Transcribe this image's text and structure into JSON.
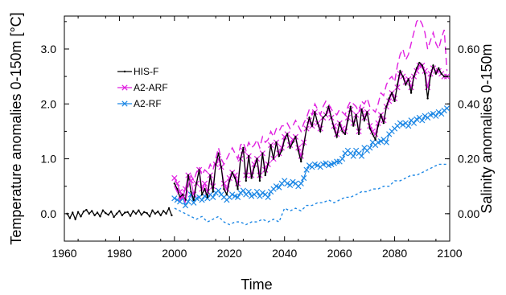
{
  "chart_data": {
    "type": "line",
    "xlabel": "Time",
    "ylabel": "Temperature anomalies 0-150m [°C]",
    "y2label": "Salinity anomalies 0-150m",
    "xlim": [
      1960,
      2100
    ],
    "ylim": [
      -0.5,
      3.6
    ],
    "y2lim": [
      -0.1,
      0.72
    ],
    "x_ticks": [
      1960,
      1980,
      2000,
      2020,
      2040,
      2060,
      2080,
      2100
    ],
    "x_tick_labels": [
      "1960",
      "1980",
      "2000",
      "2020",
      "2040",
      "2060",
      "2080",
      "2100"
    ],
    "y_ticks": [
      0,
      1,
      2,
      3
    ],
    "y_tick_labels": [
      "0.0",
      "1.0",
      "2.0",
      "3.0"
    ],
    "y2_ticks": [
      0,
      0.2,
      0.4,
      0.6
    ],
    "y2_tick_labels": [
      "0.00",
      "0.20",
      "0.40",
      "0.60"
    ],
    "grid": false,
    "legend_position": "top-left",
    "colors": {
      "his": "#000000",
      "arf": "#e020e0",
      "rf": "#1e88e5"
    },
    "series": [
      {
        "name": "HIS-F",
        "axis": "left",
        "color": "#000000",
        "style": "solid-dot",
        "marker": "dot",
        "x": [
          1961,
          1962,
          1963,
          1964,
          1965,
          1966,
          1967,
          1968,
          1969,
          1970,
          1971,
          1972,
          1973,
          1974,
          1975,
          1976,
          1977,
          1978,
          1979,
          1980,
          1981,
          1982,
          1983,
          1984,
          1985,
          1986,
          1987,
          1988,
          1989,
          1990,
          1991,
          1992,
          1993,
          1994,
          1995,
          1996,
          1997,
          1998,
          1999
        ],
        "y": [
          0.0,
          -0.08,
          0.02,
          -0.1,
          0.03,
          -0.05,
          0.04,
          0.07,
          0.0,
          0.05,
          -0.03,
          0.02,
          -0.05,
          0.06,
          0.01,
          -0.02,
          0.04,
          -0.06,
          0.0,
          0.05,
          -0.03,
          0.02,
          0.03,
          -0.04,
          0.05,
          0.0,
          0.06,
          -0.02,
          0.03,
          0.01,
          -0.05,
          0.06,
          0.0,
          0.04,
          -0.03,
          0.05,
          0.0,
          0.1,
          -0.03
        ]
      },
      {
        "name": "HIS-F",
        "axis": "left",
        "color": "#000000",
        "style": "solid-dot",
        "marker": "dot",
        "x": [
          2000,
          2001,
          2002,
          2003,
          2004,
          2005,
          2006,
          2007,
          2008,
          2009,
          2010,
          2011,
          2012,
          2013,
          2014,
          2015,
          2016,
          2017,
          2018,
          2019,
          2020,
          2021,
          2022,
          2023,
          2024,
          2025,
          2026,
          2027,
          2028,
          2029,
          2030,
          2031,
          2032,
          2033,
          2034,
          2035,
          2036,
          2037,
          2038,
          2039,
          2040,
          2041,
          2042,
          2043,
          2044,
          2045,
          2046,
          2047,
          2048,
          2049,
          2050,
          2051,
          2052,
          2053,
          2054,
          2055,
          2056,
          2057,
          2058,
          2059,
          2060,
          2061,
          2062,
          2063,
          2064,
          2065,
          2066,
          2067,
          2068,
          2069,
          2070,
          2071,
          2072,
          2073,
          2074,
          2075,
          2076,
          2077,
          2078,
          2079,
          2080,
          2081,
          2082,
          2083,
          2084,
          2085,
          2086,
          2087,
          2088,
          2089,
          2090,
          2091,
          2092,
          2093,
          2094,
          2095,
          2096,
          2097,
          2098,
          2099
        ],
        "y": [
          0.55,
          0.45,
          0.3,
          0.35,
          0.25,
          0.7,
          0.4,
          0.25,
          0.55,
          0.8,
          0.35,
          0.45,
          0.3,
          0.7,
          0.4,
          0.9,
          1.1,
          0.85,
          0.45,
          0.35,
          0.6,
          0.75,
          0.65,
          0.45,
          1.0,
          1.2,
          0.6,
          1.05,
          0.65,
          0.85,
          1.0,
          0.6,
          1.1,
          0.7,
          0.9,
          1.25,
          1.0,
          1.3,
          1.05,
          1.15,
          1.35,
          1.45,
          1.2,
          1.3,
          1.4,
          1.15,
          0.95,
          1.25,
          1.55,
          1.75,
          1.6,
          1.85,
          1.65,
          1.5,
          1.75,
          1.8,
          1.95,
          1.75,
          1.55,
          1.4,
          1.65,
          1.5,
          1.45,
          1.7,
          1.95,
          1.6,
          1.8,
          1.45,
          1.9,
          1.7,
          1.85,
          1.55,
          1.45,
          1.35,
          1.6,
          1.8,
          1.65,
          1.95,
          2.1,
          2.2,
          2.05,
          2.35,
          2.6,
          2.5,
          2.35,
          2.45,
          2.2,
          2.5,
          2.65,
          2.75,
          2.7,
          2.55,
          2.1,
          2.5,
          2.7,
          2.55,
          2.65,
          2.55,
          2.5,
          2.5
        ]
      },
      {
        "name": "A2-ARF",
        "axis": "left",
        "color": "#e020e0",
        "style": "solid",
        "marker": "x",
        "x": [
          2000,
          2001,
          2002,
          2003,
          2004,
          2005,
          2006,
          2007,
          2008,
          2009,
          2010,
          2011,
          2012,
          2013,
          2014,
          2015,
          2016,
          2017,
          2018,
          2019,
          2020,
          2021,
          2022,
          2023,
          2024,
          2025,
          2026,
          2027,
          2028,
          2029,
          2030,
          2031,
          2032,
          2033,
          2034,
          2035,
          2036,
          2037,
          2038,
          2039,
          2040,
          2041,
          2042,
          2043,
          2044,
          2045,
          2046,
          2047,
          2048,
          2049,
          2050,
          2051,
          2052,
          2053,
          2054,
          2055,
          2056,
          2057,
          2058,
          2059,
          2060,
          2061,
          2062,
          2063,
          2064,
          2065,
          2066,
          2067,
          2068,
          2069,
          2070,
          2071,
          2072,
          2073,
          2074,
          2075,
          2076,
          2077,
          2078,
          2079,
          2080,
          2081,
          2082,
          2083,
          2084,
          2085,
          2086,
          2087,
          2088,
          2089,
          2090,
          2091,
          2092,
          2093,
          2094,
          2095,
          2096,
          2097,
          2098,
          2099
        ],
        "y": [
          0.65,
          0.55,
          0.4,
          0.3,
          0.45,
          0.7,
          0.6,
          0.35,
          0.55,
          0.8,
          0.45,
          0.55,
          0.4,
          0.7,
          0.5,
          0.9,
          1.0,
          0.85,
          0.55,
          0.45,
          0.65,
          0.75,
          0.7,
          0.55,
          1.0,
          1.15,
          0.7,
          1.05,
          0.7,
          0.9,
          1.0,
          0.7,
          1.1,
          0.8,
          0.9,
          1.25,
          1.0,
          1.3,
          1.1,
          1.2,
          1.4,
          1.45,
          1.25,
          1.35,
          1.4,
          1.2,
          1.05,
          1.3,
          1.55,
          1.7,
          1.6,
          1.85,
          1.65,
          1.55,
          1.75,
          1.8,
          1.9,
          1.75,
          1.6,
          1.45,
          1.65,
          1.55,
          1.5,
          1.75,
          1.9,
          1.65,
          1.8,
          1.5,
          1.9,
          1.75,
          1.85,
          1.6,
          1.5,
          1.45,
          1.65,
          1.8,
          1.7,
          1.95,
          2.05,
          2.2,
          2.1,
          2.3,
          2.55,
          2.5,
          2.4,
          2.45,
          2.3,
          2.5,
          2.6,
          2.7,
          2.7,
          2.6,
          2.3,
          2.55,
          2.65,
          2.6,
          2.6,
          2.55,
          2.5,
          2.5
        ]
      },
      {
        "name": "A2-RF",
        "axis": "left",
        "color": "#1e88e5",
        "style": "solid",
        "marker": "x",
        "x": [
          2000,
          2001,
          2002,
          2003,
          2004,
          2005,
          2006,
          2007,
          2008,
          2009,
          2010,
          2011,
          2012,
          2013,
          2014,
          2015,
          2016,
          2017,
          2018,
          2019,
          2020,
          2021,
          2022,
          2023,
          2024,
          2025,
          2026,
          2027,
          2028,
          2029,
          2030,
          2031,
          2032,
          2033,
          2034,
          2035,
          2036,
          2037,
          2038,
          2039,
          2040,
          2041,
          2042,
          2043,
          2044,
          2045,
          2046,
          2047,
          2048,
          2049,
          2050,
          2051,
          2052,
          2053,
          2054,
          2055,
          2056,
          2057,
          2058,
          2059,
          2060,
          2061,
          2062,
          2063,
          2064,
          2065,
          2066,
          2067,
          2068,
          2069,
          2070,
          2071,
          2072,
          2073,
          2074,
          2075,
          2076,
          2077,
          2078,
          2079,
          2080,
          2081,
          2082,
          2083,
          2084,
          2085,
          2086,
          2087,
          2088,
          2089,
          2090,
          2091,
          2092,
          2093,
          2094,
          2095,
          2096,
          2097,
          2098,
          2099
        ],
        "y": [
          0.28,
          0.25,
          0.22,
          0.3,
          0.15,
          0.22,
          0.35,
          0.2,
          0.28,
          0.3,
          0.25,
          0.32,
          0.28,
          0.35,
          0.3,
          0.38,
          0.42,
          0.35,
          0.3,
          0.25,
          0.3,
          0.35,
          0.32,
          0.3,
          0.38,
          0.42,
          0.35,
          0.4,
          0.32,
          0.35,
          0.4,
          0.32,
          0.38,
          0.35,
          0.3,
          0.4,
          0.45,
          0.5,
          0.48,
          0.55,
          0.6,
          0.55,
          0.52,
          0.58,
          0.55,
          0.5,
          0.55,
          0.65,
          0.8,
          0.88,
          0.85,
          0.9,
          0.88,
          0.85,
          0.9,
          0.92,
          0.88,
          0.9,
          0.92,
          0.95,
          0.95,
          1.0,
          1.1,
          1.15,
          1.1,
          1.05,
          1.15,
          1.1,
          1.05,
          1.2,
          1.15,
          1.2,
          1.3,
          1.25,
          1.3,
          1.32,
          1.35,
          1.3,
          1.45,
          1.5,
          1.55,
          1.6,
          1.65,
          1.62,
          1.65,
          1.6,
          1.7,
          1.65,
          1.72,
          1.75,
          1.7,
          1.78,
          1.75,
          1.8,
          1.82,
          1.78,
          1.85,
          1.82,
          1.88,
          1.92
        ]
      },
      {
        "name": "A2-ARF",
        "axis": "right",
        "color": "#e020e0",
        "style": "dashed",
        "marker": "none",
        "x": [
          2000,
          2001,
          2002,
          2003,
          2004,
          2005,
          2006,
          2007,
          2008,
          2009,
          2010,
          2011,
          2012,
          2013,
          2014,
          2015,
          2016,
          2017,
          2018,
          2019,
          2020,
          2021,
          2022,
          2023,
          2024,
          2025,
          2026,
          2027,
          2028,
          2029,
          2030,
          2031,
          2032,
          2033,
          2034,
          2035,
          2036,
          2037,
          2038,
          2039,
          2040,
          2041,
          2042,
          2043,
          2044,
          2045,
          2046,
          2047,
          2048,
          2049,
          2050,
          2051,
          2052,
          2053,
          2054,
          2055,
          2056,
          2057,
          2058,
          2059,
          2060,
          2061,
          2062,
          2063,
          2064,
          2065,
          2066,
          2067,
          2068,
          2069,
          2070,
          2071,
          2072,
          2073,
          2074,
          2075,
          2076,
          2077,
          2078,
          2079,
          2080,
          2081,
          2082,
          2083,
          2084,
          2085,
          2086,
          2087,
          2088,
          2089,
          2090,
          2091,
          2092,
          2093,
          2094,
          2095,
          2096,
          2097,
          2098,
          2099
        ],
        "y": [
          0.1,
          0.08,
          0.05,
          0.07,
          0.04,
          0.1,
          0.14,
          0.12,
          0.15,
          0.17,
          0.14,
          0.16,
          0.15,
          0.18,
          0.16,
          0.2,
          0.24,
          0.2,
          0.18,
          0.2,
          0.22,
          0.24,
          0.22,
          0.2,
          0.25,
          0.26,
          0.23,
          0.26,
          0.24,
          0.25,
          0.27,
          0.24,
          0.28,
          0.26,
          0.27,
          0.3,
          0.28,
          0.31,
          0.3,
          0.32,
          0.32,
          0.33,
          0.31,
          0.32,
          0.34,
          0.32,
          0.3,
          0.33,
          0.35,
          0.38,
          0.36,
          0.4,
          0.38,
          0.36,
          0.39,
          0.41,
          0.4,
          0.38,
          0.37,
          0.36,
          0.38,
          0.37,
          0.36,
          0.39,
          0.41,
          0.4,
          0.39,
          0.37,
          0.41,
          0.4,
          0.42,
          0.39,
          0.38,
          0.37,
          0.4,
          0.44,
          0.43,
          0.47,
          0.49,
          0.5,
          0.48,
          0.54,
          0.58,
          0.6,
          0.56,
          0.58,
          0.62,
          0.66,
          0.7,
          0.71,
          0.69,
          0.66,
          0.6,
          0.63,
          0.66,
          0.62,
          0.6,
          0.64,
          0.67,
          0.52
        ]
      },
      {
        "name": "A2-RF",
        "axis": "right",
        "color": "#1e88e5",
        "style": "dotted",
        "marker": "none",
        "x": [
          2000,
          2002,
          2004,
          2006,
          2008,
          2010,
          2012,
          2014,
          2016,
          2018,
          2020,
          2022,
          2024,
          2026,
          2028,
          2030,
          2032,
          2034,
          2036,
          2038,
          2040,
          2042,
          2044,
          2046,
          2048,
          2050,
          2052,
          2054,
          2056,
          2058,
          2060,
          2062,
          2064,
          2066,
          2068,
          2070,
          2072,
          2074,
          2076,
          2078,
          2080,
          2082,
          2084,
          2086,
          2088,
          2090,
          2092,
          2094,
          2096,
          2098,
          2099
        ],
        "y": [
          0.02,
          0.01,
          0.0,
          -0.01,
          -0.02,
          -0.01,
          -0.03,
          -0.02,
          -0.01,
          -0.03,
          -0.04,
          -0.03,
          -0.03,
          -0.04,
          -0.03,
          -0.03,
          -0.02,
          -0.03,
          -0.02,
          -0.03,
          0.02,
          0.01,
          0.02,
          0.01,
          0.03,
          0.03,
          0.04,
          0.04,
          0.05,
          0.04,
          0.05,
          0.06,
          0.06,
          0.07,
          0.08,
          0.08,
          0.09,
          0.09,
          0.1,
          0.1,
          0.12,
          0.12,
          0.13,
          0.14,
          0.14,
          0.15,
          0.16,
          0.17,
          0.18,
          0.18,
          0.18
        ]
      }
    ]
  }
}
